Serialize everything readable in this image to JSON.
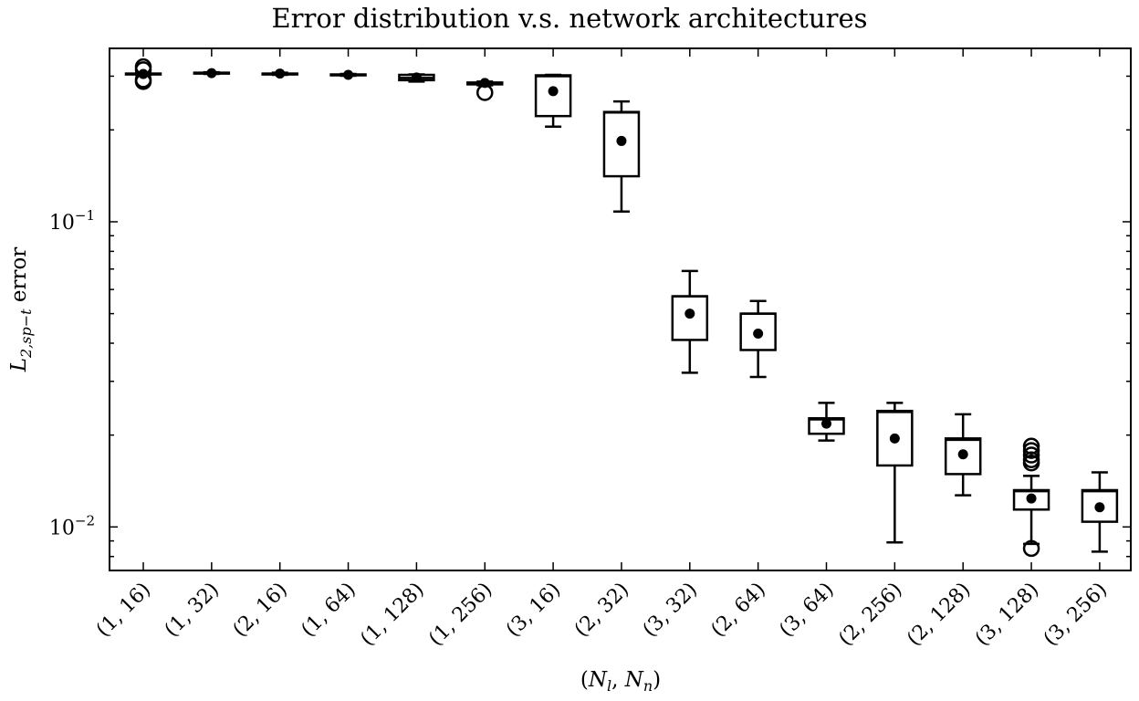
{
  "chart_data": {
    "type": "box",
    "title": "Error distribution v.s. network architectures",
    "xlabel": "(N_l, N_n)",
    "ylabel": "L_{2,sp-t} error",
    "yscale": "log",
    "ylim": [
      0.0072,
      0.37
    ],
    "yticks": [
      {
        "value": 0.1,
        "base": "10",
        "exp": "−1"
      },
      {
        "value": 0.01,
        "base": "10",
        "exp": "−2"
      }
    ],
    "grid": false,
    "marker_meaning": "mean",
    "categories": [
      "(1, 16)",
      "(1, 32)",
      "(2, 16)",
      "(1, 64)",
      "(1, 128)",
      "(1, 256)",
      "(3, 16)",
      "(2, 32)",
      "(3, 32)",
      "(2, 64)",
      "(3, 64)",
      "(2, 256)",
      "(2, 128)",
      "(3, 128)",
      "(3, 256)"
    ],
    "boxes": [
      {
        "whislo": 0.303,
        "q1": 0.304,
        "med": 0.305,
        "q3": 0.306,
        "whishi": 0.307,
        "mean": 0.305,
        "fliers": [
          0.322,
          0.315,
          0.292,
          0.288
        ]
      },
      {
        "whislo": 0.305,
        "q1": 0.306,
        "med": 0.307,
        "q3": 0.308,
        "whishi": 0.309,
        "mean": 0.307,
        "fliers": []
      },
      {
        "whislo": 0.303,
        "q1": 0.304,
        "med": 0.305,
        "q3": 0.306,
        "whishi": 0.308,
        "mean": 0.306,
        "fliers": []
      },
      {
        "whislo": 0.301,
        "q1": 0.302,
        "med": 0.303,
        "q3": 0.304,
        "whishi": 0.305,
        "mean": 0.303,
        "fliers": []
      },
      {
        "whislo": 0.288,
        "q1": 0.291,
        "med": 0.296,
        "q3": 0.303,
        "whishi": 0.304,
        "mean": 0.297,
        "fliers": []
      },
      {
        "whislo": 0.28,
        "q1": 0.282,
        "med": 0.284,
        "q3": 0.286,
        "whishi": 0.288,
        "mean": 0.285,
        "fliers": [
          0.265
        ]
      },
      {
        "whislo": 0.205,
        "q1": 0.222,
        "med": 0.3,
        "q3": 0.302,
        "whishi": 0.303,
        "mean": 0.268,
        "fliers": []
      },
      {
        "whislo": 0.108,
        "q1": 0.141,
        "med": 0.228,
        "q3": 0.229,
        "whishi": 0.248,
        "mean": 0.184,
        "fliers": []
      },
      {
        "whislo": 0.032,
        "q1": 0.041,
        "med": 0.057,
        "q3": 0.057,
        "whishi": 0.069,
        "mean": 0.05,
        "fliers": []
      },
      {
        "whislo": 0.031,
        "q1": 0.038,
        "med": 0.05,
        "q3": 0.05,
        "whishi": 0.055,
        "mean": 0.043,
        "fliers": []
      },
      {
        "whislo": 0.0192,
        "q1": 0.0202,
        "med": 0.0225,
        "q3": 0.0227,
        "whishi": 0.0255,
        "mean": 0.0218,
        "fliers": []
      },
      {
        "whislo": 0.0089,
        "q1": 0.0159,
        "med": 0.0238,
        "q3": 0.024,
        "whishi": 0.0255,
        "mean": 0.0195,
        "fliers": []
      },
      {
        "whislo": 0.0127,
        "q1": 0.0149,
        "med": 0.0193,
        "q3": 0.0195,
        "whishi": 0.0234,
        "mean": 0.0173,
        "fliers": []
      },
      {
        "whislo": 0.0088,
        "q1": 0.0114,
        "med": 0.0131,
        "q3": 0.0132,
        "whishi": 0.0147,
        "mean": 0.0124,
        "fliers": [
          0.0184,
          0.0178,
          0.0172,
          0.0166,
          0.0162,
          0.0085
        ]
      },
      {
        "whislo": 0.0083,
        "q1": 0.0104,
        "med": 0.0131,
        "q3": 0.0132,
        "whishi": 0.0151,
        "mean": 0.0116,
        "fliers": []
      }
    ]
  }
}
